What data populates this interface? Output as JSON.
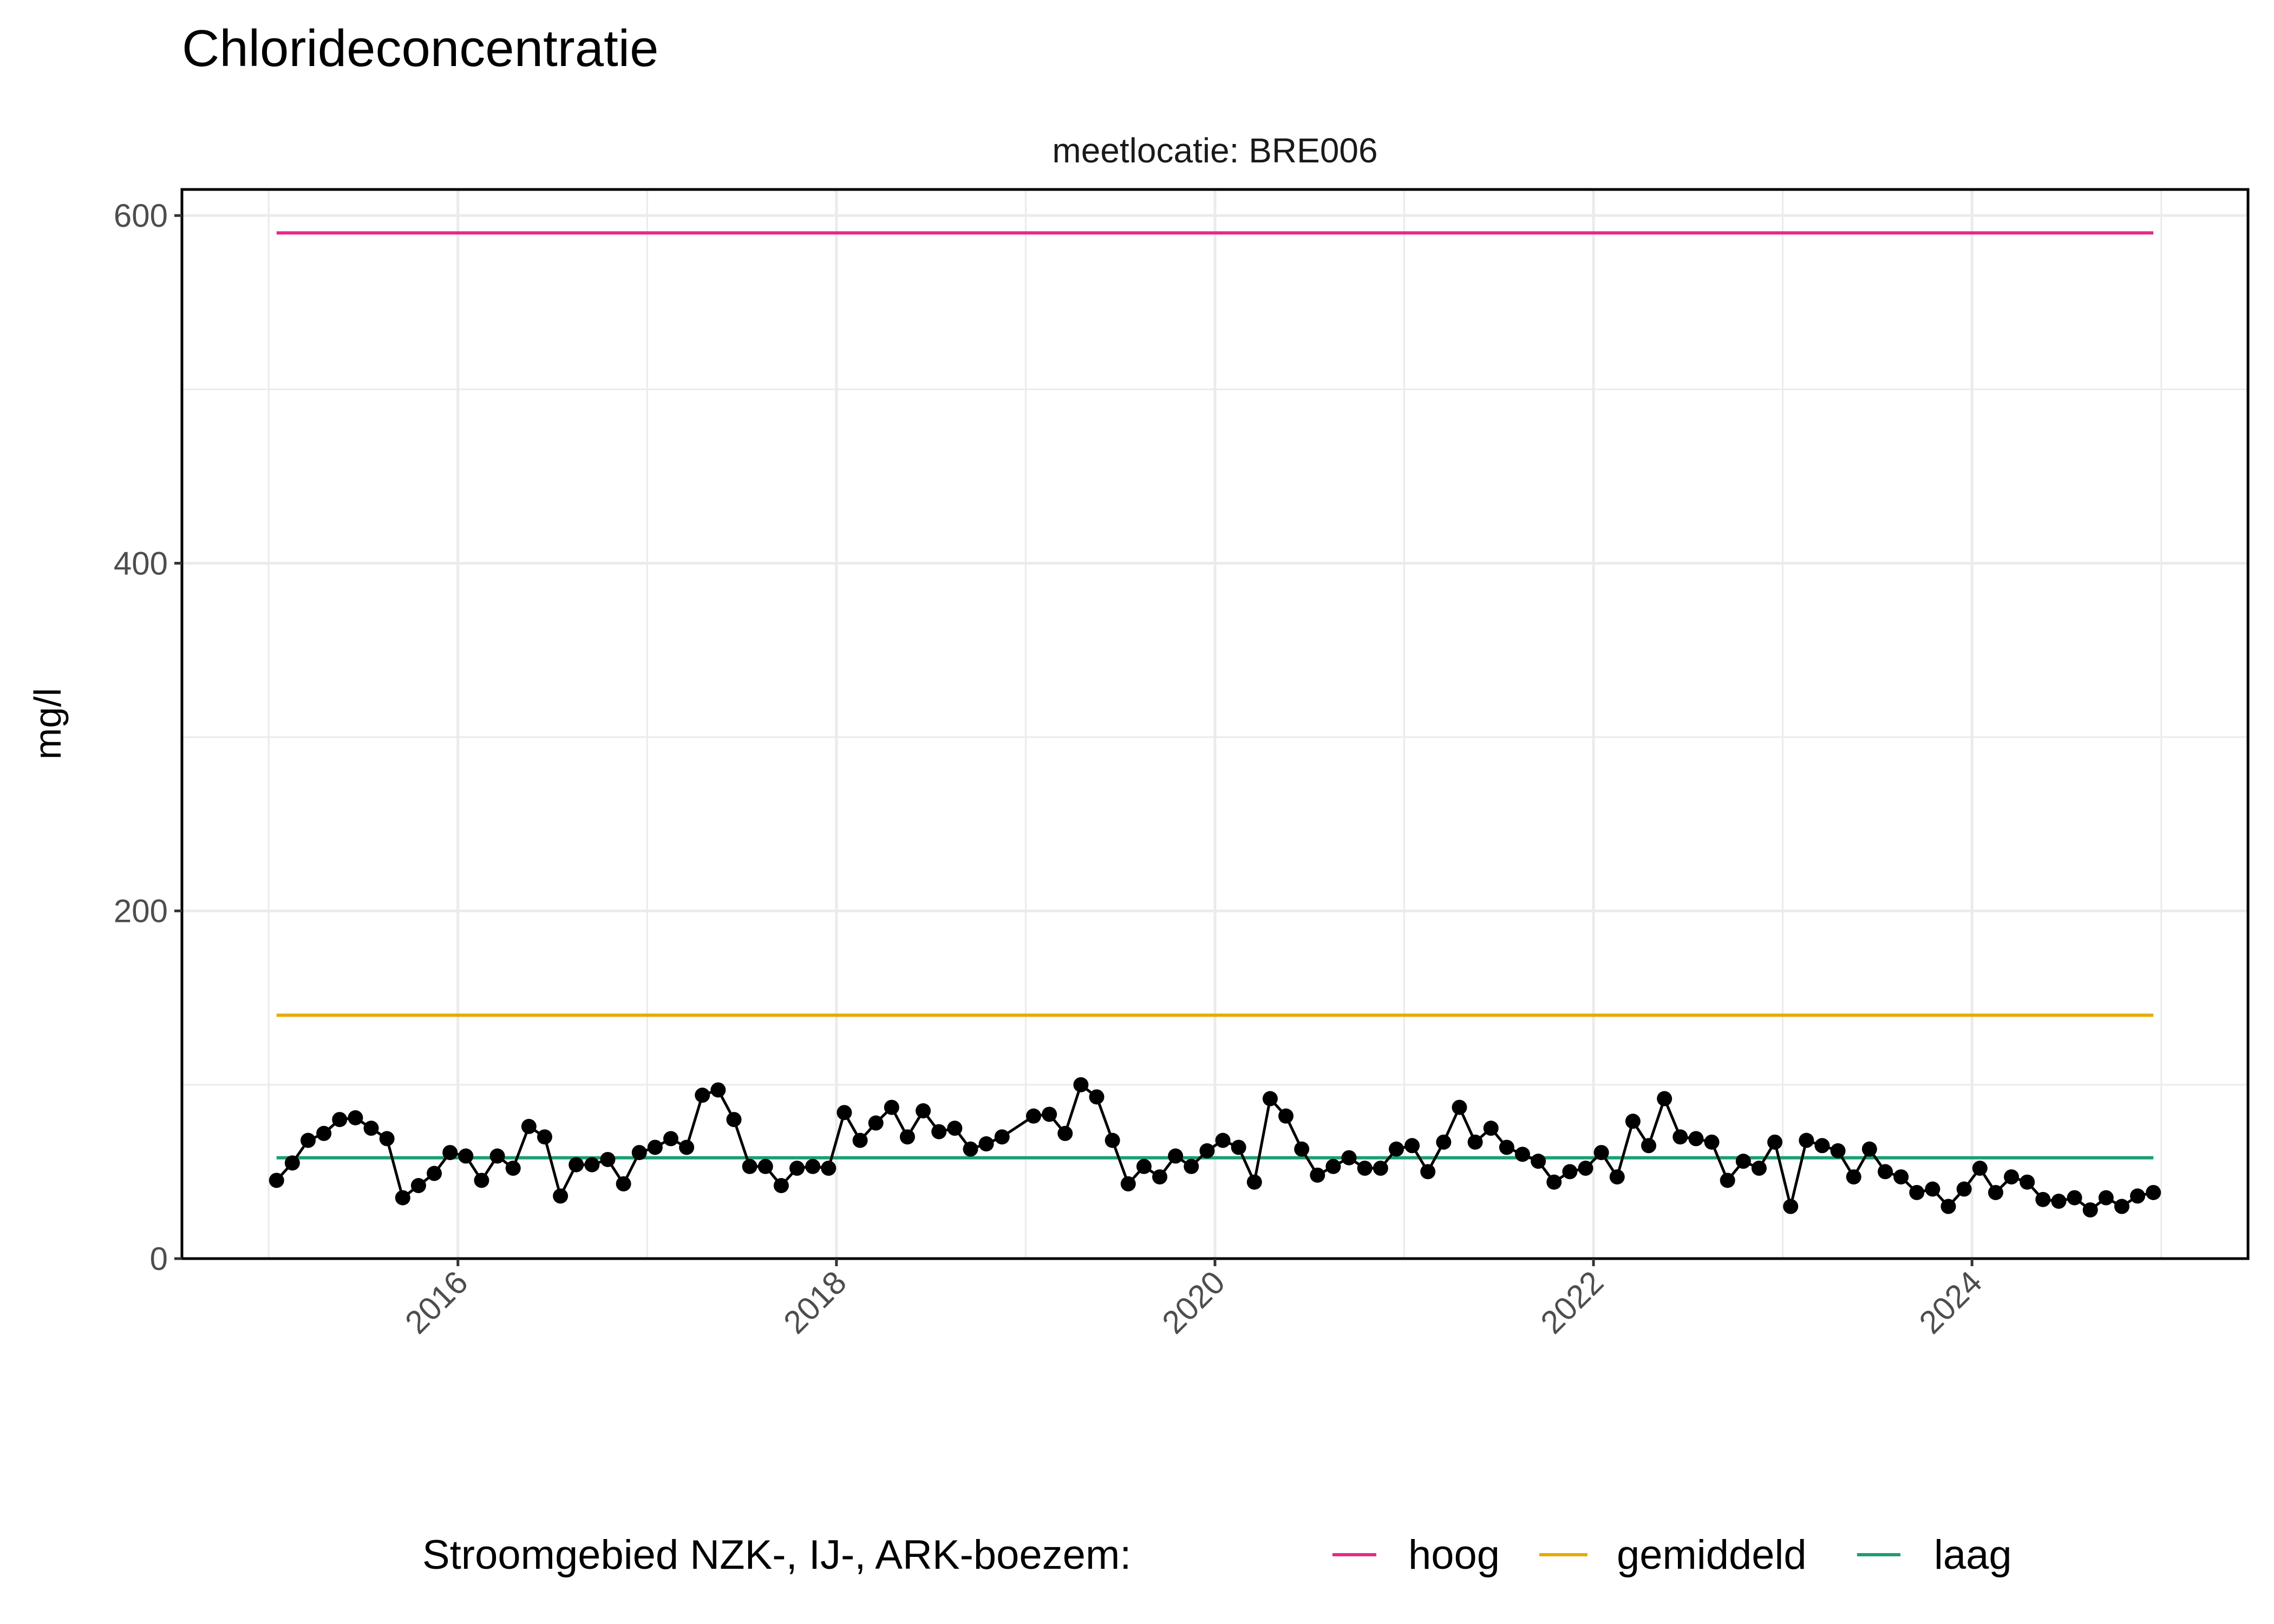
{
  "chart_data": {
    "type": "line",
    "title": "Chlorideconcentratie",
    "facet_label": "meetlocatie: BRE006",
    "xlabel": "",
    "ylabel": "mg/l",
    "ylim": [
      0,
      615
    ],
    "xlim": [
      "2014-07",
      "2025-06"
    ],
    "grid": true,
    "x_ticks": [
      "2016",
      "2018",
      "2020",
      "2022",
      "2024"
    ],
    "y_ticks": [
      "0",
      "200",
      "400",
      "600"
    ],
    "legend": {
      "position": "bottom",
      "title": "Stroomgebied NZK-, IJ-, ARK-boezem:",
      "entries": [
        {
          "name": "hoog",
          "color": "#e7298a"
        },
        {
          "name": "gemiddeld",
          "color": "#e6ab02"
        },
        {
          "name": "laag",
          "color": "#1b9e77"
        }
      ]
    },
    "reference_lines": [
      {
        "name": "hoog",
        "value": 590,
        "color": "#e7298a"
      },
      {
        "name": "gemiddeld",
        "value": 140,
        "color": "#e6ab02"
      },
      {
        "name": "laag",
        "value": 58,
        "color": "#1b9e77"
      }
    ],
    "series": [
      {
        "color": "#000000",
        "x": [
          "2015-01",
          "2015-02",
          "2015-03",
          "2015-04",
          "2015-05",
          "2015-06",
          "2015-07",
          "2015-08",
          "2015-09",
          "2015-10",
          "2015-11",
          "2015-12",
          "2016-01",
          "2016-02",
          "2016-03",
          "2016-04",
          "2016-05",
          "2016-06",
          "2016-07",
          "2016-08",
          "2016-09",
          "2016-10",
          "2016-11",
          "2016-12",
          "2017-01",
          "2017-02",
          "2017-03",
          "2017-04",
          "2017-05",
          "2017-06",
          "2017-07",
          "2017-08",
          "2017-09",
          "2017-10",
          "2017-11",
          "2017-12",
          "2018-01",
          "2018-02",
          "2018-03",
          "2018-04",
          "2018-05",
          "2018-06",
          "2018-07",
          "2018-08",
          "2018-09",
          "2018-10",
          "2018-11",
          "2019-01",
          "2019-02",
          "2019-03",
          "2019-04",
          "2019-05",
          "2019-06",
          "2019-07",
          "2019-08",
          "2019-09",
          "2019-10",
          "2019-11",
          "2019-12",
          "2020-01",
          "2020-02",
          "2020-03",
          "2020-04",
          "2020-05",
          "2020-06",
          "2020-07",
          "2020-08",
          "2020-09",
          "2020-10",
          "2020-11",
          "2020-12",
          "2021-01",
          "2021-02",
          "2021-03",
          "2021-04",
          "2021-05",
          "2021-06",
          "2021-07",
          "2021-08",
          "2021-09",
          "2021-10",
          "2021-11",
          "2021-12",
          "2022-01",
          "2022-02",
          "2022-03",
          "2022-04",
          "2022-05",
          "2022-06",
          "2022-07",
          "2022-08",
          "2022-09",
          "2022-10",
          "2022-11",
          "2022-12",
          "2023-01",
          "2023-02",
          "2023-03",
          "2023-04",
          "2023-05",
          "2023-06",
          "2023-07",
          "2023-08",
          "2023-09",
          "2023-10",
          "2023-11",
          "2023-12",
          "2024-01",
          "2024-02",
          "2024-03",
          "2024-04",
          "2024-05",
          "2024-06",
          "2024-07",
          "2024-08",
          "2024-09",
          "2024-10",
          "2024-11",
          "2024-12"
        ],
        "values": [
          45,
          55,
          68,
          72,
          80,
          81,
          75,
          69,
          35,
          42,
          49,
          61,
          59,
          45,
          59,
          52,
          76,
          70,
          36,
          54,
          54,
          57,
          43,
          61,
          64,
          69,
          64,
          94,
          97,
          80,
          53,
          53,
          42,
          52,
          53,
          52,
          84,
          68,
          78,
          87,
          70,
          85,
          73,
          75,
          63,
          66,
          70,
          82,
          83,
          72,
          100,
          93,
          68,
          43,
          53,
          47,
          59,
          53,
          62,
          68,
          64,
          44,
          92,
          82,
          63,
          48,
          53,
          58,
          52,
          52,
          63,
          65,
          50,
          67,
          87,
          67,
          75,
          64,
          60,
          56,
          44,
          50,
          52,
          61,
          47,
          79,
          65,
          92,
          70,
          69,
          67,
          45,
          56,
          52,
          67,
          30,
          68,
          65,
          62,
          47,
          63,
          50,
          47,
          38,
          40,
          30,
          40,
          52,
          38,
          47,
          44,
          34,
          33,
          35,
          28,
          35,
          30,
          36,
          38
        ]
      }
    ]
  }
}
